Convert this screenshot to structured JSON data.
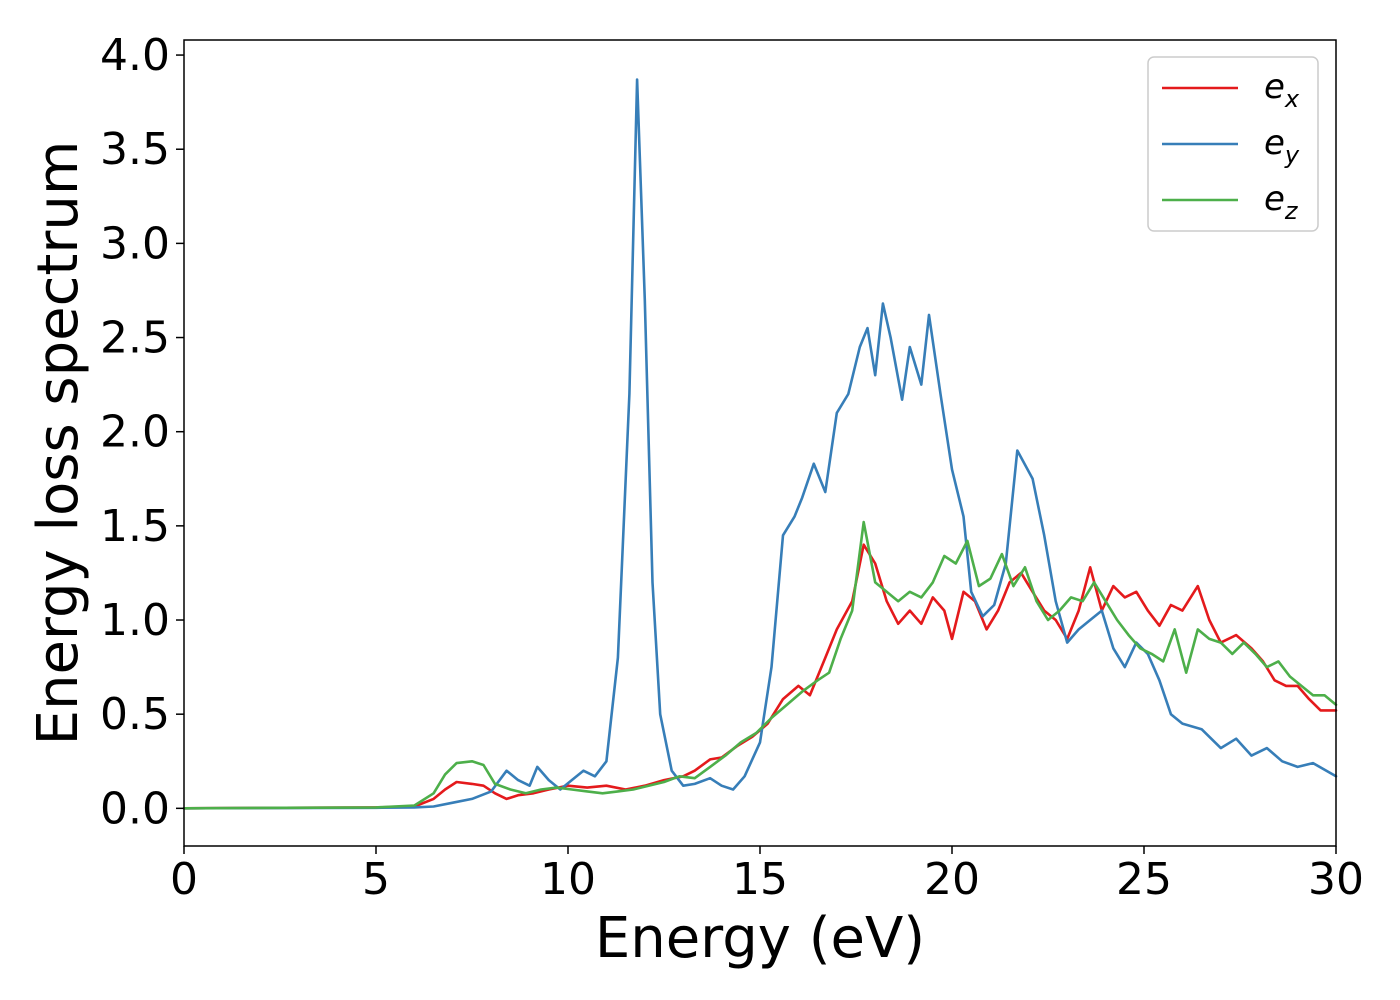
{
  "chart_data": {
    "type": "line",
    "title": "",
    "xlabel": "Energy (eV)",
    "ylabel": "Energy loss spectrum",
    "xlim": [
      0,
      30
    ],
    "ylim": [
      -0.2,
      4.08
    ],
    "xticks": [
      0,
      5,
      10,
      15,
      20,
      25,
      30
    ],
    "xtick_labels": [
      "0",
      "5",
      "10",
      "15",
      "20",
      "25",
      "30"
    ],
    "yticks": [
      0.0,
      0.5,
      1.0,
      1.5,
      2.0,
      2.5,
      3.0,
      3.5,
      4.0
    ],
    "ytick_labels": [
      "0.0",
      "0.5",
      "1.0",
      "1.5",
      "2.0",
      "2.5",
      "3.0",
      "3.5",
      "4.0"
    ],
    "grid": false,
    "legend_position": "top-right",
    "series": [
      {
        "name": "e_x",
        "legend_base": "e",
        "legend_sub": "x",
        "color": "#e41a1c",
        "points": [
          [
            0,
            0
          ],
          [
            5,
            0.005
          ],
          [
            6,
            0.01
          ],
          [
            6.5,
            0.05
          ],
          [
            6.8,
            0.1
          ],
          [
            7.1,
            0.14
          ],
          [
            7.5,
            0.13
          ],
          [
            7.8,
            0.12
          ],
          [
            8.1,
            0.08
          ],
          [
            8.4,
            0.05
          ],
          [
            8.7,
            0.07
          ],
          [
            9.1,
            0.08
          ],
          [
            9.5,
            0.1
          ],
          [
            10,
            0.12
          ],
          [
            10.5,
            0.11
          ],
          [
            11,
            0.12
          ],
          [
            11.5,
            0.1
          ],
          [
            12,
            0.12
          ],
          [
            12.5,
            0.15
          ],
          [
            13,
            0.17
          ],
          [
            13.3,
            0.2
          ],
          [
            13.7,
            0.26
          ],
          [
            14,
            0.27
          ],
          [
            14.4,
            0.33
          ],
          [
            14.8,
            0.38
          ],
          [
            15.2,
            0.45
          ],
          [
            15.6,
            0.58
          ],
          [
            16,
            0.65
          ],
          [
            16.3,
            0.6
          ],
          [
            16.7,
            0.8
          ],
          [
            17,
            0.95
          ],
          [
            17.4,
            1.1
          ],
          [
            17.7,
            1.4
          ],
          [
            18,
            1.3
          ],
          [
            18.3,
            1.1
          ],
          [
            18.6,
            0.98
          ],
          [
            18.9,
            1.05
          ],
          [
            19.2,
            0.98
          ],
          [
            19.5,
            1.12
          ],
          [
            19.8,
            1.05
          ],
          [
            20,
            0.9
          ],
          [
            20.3,
            1.15
          ],
          [
            20.6,
            1.1
          ],
          [
            20.9,
            0.95
          ],
          [
            21.2,
            1.05
          ],
          [
            21.5,
            1.2
          ],
          [
            21.8,
            1.25
          ],
          [
            22.1,
            1.15
          ],
          [
            22.4,
            1.05
          ],
          [
            22.7,
            1.0
          ],
          [
            23,
            0.9
          ],
          [
            23.3,
            1.05
          ],
          [
            23.6,
            1.28
          ],
          [
            23.9,
            1.05
          ],
          [
            24.2,
            1.18
          ],
          [
            24.5,
            1.12
          ],
          [
            24.8,
            1.15
          ],
          [
            25.1,
            1.05
          ],
          [
            25.4,
            0.97
          ],
          [
            25.7,
            1.08
          ],
          [
            26,
            1.05
          ],
          [
            26.4,
            1.18
          ],
          [
            26.7,
            1.0
          ],
          [
            27,
            0.88
          ],
          [
            27.4,
            0.92
          ],
          [
            27.8,
            0.85
          ],
          [
            28.1,
            0.78
          ],
          [
            28.4,
            0.68
          ],
          [
            28.7,
            0.65
          ],
          [
            29,
            0.65
          ],
          [
            29.3,
            0.58
          ],
          [
            29.6,
            0.52
          ],
          [
            30,
            0.52
          ]
        ]
      },
      {
        "name": "e_y",
        "legend_base": "e",
        "legend_sub": "y",
        "color": "#377eb8",
        "points": [
          [
            0,
            0
          ],
          [
            5,
            0.003
          ],
          [
            6,
            0.005
          ],
          [
            6.5,
            0.01
          ],
          [
            7,
            0.03
          ],
          [
            7.5,
            0.05
          ],
          [
            8,
            0.09
          ],
          [
            8.4,
            0.2
          ],
          [
            8.7,
            0.15
          ],
          [
            9,
            0.12
          ],
          [
            9.2,
            0.22
          ],
          [
            9.5,
            0.15
          ],
          [
            9.8,
            0.1
          ],
          [
            10.1,
            0.15
          ],
          [
            10.4,
            0.2
          ],
          [
            10.7,
            0.17
          ],
          [
            11,
            0.25
          ],
          [
            11.3,
            0.8
          ],
          [
            11.6,
            2.2
          ],
          [
            11.8,
            3.87
          ],
          [
            12,
            2.7
          ],
          [
            12.2,
            1.2
          ],
          [
            12.4,
            0.5
          ],
          [
            12.7,
            0.2
          ],
          [
            13,
            0.12
          ],
          [
            13.3,
            0.13
          ],
          [
            13.7,
            0.16
          ],
          [
            14,
            0.12
          ],
          [
            14.3,
            0.1
          ],
          [
            14.6,
            0.17
          ],
          [
            15,
            0.35
          ],
          [
            15.3,
            0.75
          ],
          [
            15.6,
            1.45
          ],
          [
            15.9,
            1.55
          ],
          [
            16.1,
            1.65
          ],
          [
            16.4,
            1.83
          ],
          [
            16.7,
            1.68
          ],
          [
            17,
            2.1
          ],
          [
            17.3,
            2.2
          ],
          [
            17.6,
            2.45
          ],
          [
            17.8,
            2.55
          ],
          [
            18,
            2.3
          ],
          [
            18.2,
            2.68
          ],
          [
            18.4,
            2.5
          ],
          [
            18.7,
            2.17
          ],
          [
            18.9,
            2.45
          ],
          [
            19.2,
            2.25
          ],
          [
            19.4,
            2.62
          ],
          [
            19.7,
            2.2
          ],
          [
            20,
            1.8
          ],
          [
            20.3,
            1.55
          ],
          [
            20.5,
            1.15
          ],
          [
            20.8,
            1.02
          ],
          [
            21.1,
            1.08
          ],
          [
            21.4,
            1.3
          ],
          [
            21.7,
            1.9
          ],
          [
            22.1,
            1.75
          ],
          [
            22.4,
            1.45
          ],
          [
            22.7,
            1.1
          ],
          [
            23,
            0.88
          ],
          [
            23.3,
            0.95
          ],
          [
            23.6,
            1.0
          ],
          [
            23.9,
            1.05
          ],
          [
            24.2,
            0.85
          ],
          [
            24.5,
            0.75
          ],
          [
            24.8,
            0.88
          ],
          [
            25.1,
            0.82
          ],
          [
            25.4,
            0.68
          ],
          [
            25.7,
            0.5
          ],
          [
            26,
            0.45
          ],
          [
            26.5,
            0.42
          ],
          [
            27,
            0.32
          ],
          [
            27.4,
            0.37
          ],
          [
            27.8,
            0.28
          ],
          [
            28.2,
            0.32
          ],
          [
            28.6,
            0.25
          ],
          [
            29,
            0.22
          ],
          [
            29.4,
            0.24
          ],
          [
            30,
            0.17
          ]
        ]
      },
      {
        "name": "e_z",
        "legend_base": "e",
        "legend_sub": "z",
        "color": "#4daf4a",
        "points": [
          [
            0,
            0
          ],
          [
            5,
            0.005
          ],
          [
            6,
            0.015
          ],
          [
            6.5,
            0.08
          ],
          [
            6.8,
            0.18
          ],
          [
            7.1,
            0.24
          ],
          [
            7.5,
            0.25
          ],
          [
            7.8,
            0.23
          ],
          [
            8.1,
            0.13
          ],
          [
            8.5,
            0.1
          ],
          [
            8.9,
            0.08
          ],
          [
            9.3,
            0.1
          ],
          [
            9.7,
            0.11
          ],
          [
            10.1,
            0.1
          ],
          [
            10.5,
            0.09
          ],
          [
            10.9,
            0.08
          ],
          [
            11.3,
            0.09
          ],
          [
            11.7,
            0.1
          ],
          [
            12.1,
            0.12
          ],
          [
            12.5,
            0.14
          ],
          [
            12.9,
            0.17
          ],
          [
            13.3,
            0.16
          ],
          [
            13.7,
            0.22
          ],
          [
            14.1,
            0.28
          ],
          [
            14.5,
            0.35
          ],
          [
            14.9,
            0.4
          ],
          [
            15.3,
            0.48
          ],
          [
            15.7,
            0.55
          ],
          [
            16.1,
            0.62
          ],
          [
            16.5,
            0.68
          ],
          [
            16.8,
            0.72
          ],
          [
            17.1,
            0.9
          ],
          [
            17.4,
            1.05
          ],
          [
            17.7,
            1.52
          ],
          [
            18,
            1.2
          ],
          [
            18.3,
            1.15
          ],
          [
            18.6,
            1.1
          ],
          [
            18.9,
            1.15
          ],
          [
            19.2,
            1.12
          ],
          [
            19.5,
            1.2
          ],
          [
            19.8,
            1.34
          ],
          [
            20.1,
            1.3
          ],
          [
            20.4,
            1.42
          ],
          [
            20.7,
            1.18
          ],
          [
            21,
            1.22
          ],
          [
            21.3,
            1.35
          ],
          [
            21.6,
            1.18
          ],
          [
            21.9,
            1.28
          ],
          [
            22.2,
            1.1
          ],
          [
            22.5,
            1.0
          ],
          [
            22.8,
            1.05
          ],
          [
            23.1,
            1.12
          ],
          [
            23.4,
            1.1
          ],
          [
            23.7,
            1.2
          ],
          [
            24,
            1.1
          ],
          [
            24.3,
            1.0
          ],
          [
            24.6,
            0.92
          ],
          [
            24.9,
            0.85
          ],
          [
            25.2,
            0.82
          ],
          [
            25.5,
            0.78
          ],
          [
            25.8,
            0.95
          ],
          [
            26.1,
            0.72
          ],
          [
            26.4,
            0.95
          ],
          [
            26.7,
            0.9
          ],
          [
            27,
            0.88
          ],
          [
            27.3,
            0.82
          ],
          [
            27.6,
            0.88
          ],
          [
            27.9,
            0.82
          ],
          [
            28.2,
            0.75
          ],
          [
            28.5,
            0.78
          ],
          [
            28.8,
            0.7
          ],
          [
            29.1,
            0.65
          ],
          [
            29.4,
            0.6
          ],
          [
            29.7,
            0.6
          ],
          [
            30,
            0.55
          ]
        ]
      }
    ]
  }
}
